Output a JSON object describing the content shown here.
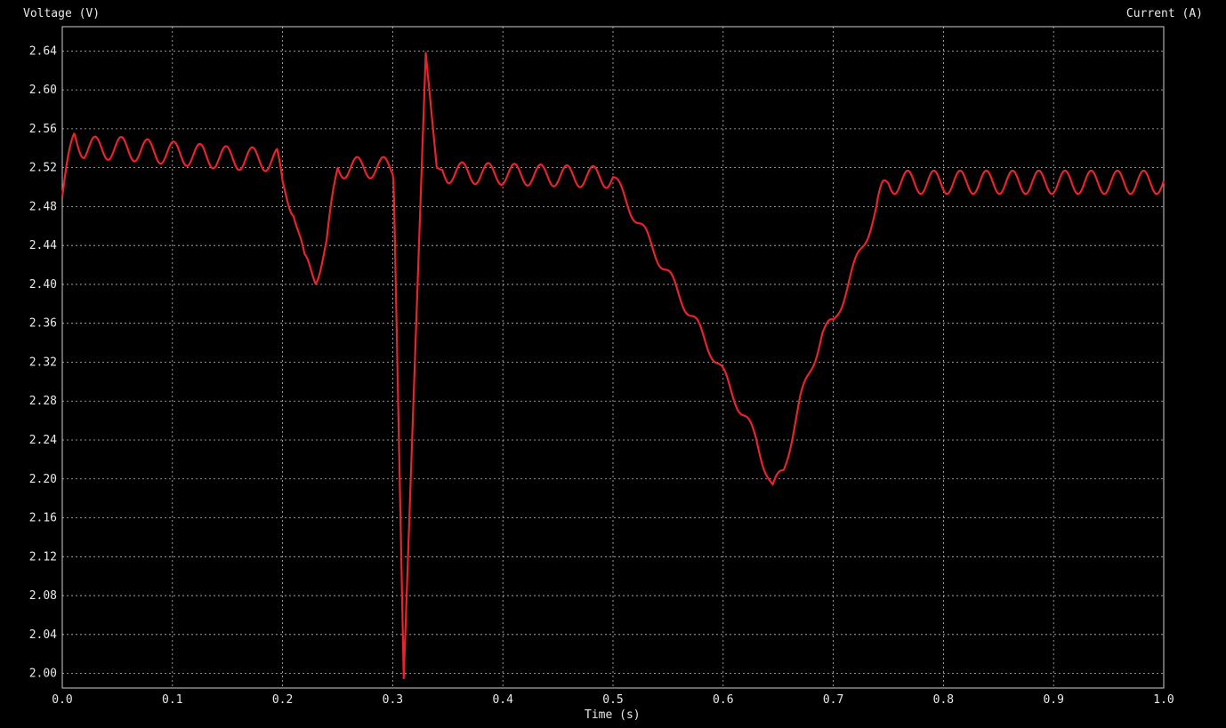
{
  "chart_data": {
    "type": "line",
    "xlabel": "Time (s)",
    "ylabel_left": "Voltage (V)",
    "ylabel_right": "Current (A)",
    "xlim": [
      0.0,
      1.0
    ],
    "ylim": [
      1.985,
      2.665
    ],
    "x_ticks": [
      "0.0",
      "0.1",
      "0.2",
      "0.3",
      "0.4",
      "0.5",
      "0.6",
      "0.7",
      "0.8",
      "0.9",
      "1.0"
    ],
    "y_ticks": [
      "2.00",
      "2.04",
      "2.08",
      "2.12",
      "2.16",
      "2.20",
      "2.24",
      "2.28",
      "2.32",
      "2.36",
      "2.40",
      "2.44",
      "2.48",
      "2.52",
      "2.56",
      "2.60",
      "2.64"
    ],
    "grid": true,
    "series": [
      {
        "color": "#e8232b",
        "x": [
          0.0,
          0.011,
          0.02,
          0.05,
          0.1,
          0.15,
          0.195,
          0.2,
          0.21,
          0.22,
          0.23,
          0.24,
          0.25,
          0.3,
          0.301,
          0.31,
          0.33,
          0.34,
          0.35,
          0.5,
          0.51,
          0.53,
          0.55,
          0.57,
          0.59,
          0.61,
          0.63,
          0.645,
          0.655,
          0.67,
          0.69,
          0.7,
          0.72,
          0.745,
          0.75,
          1.0
        ],
        "y": [
          2.49,
          2.553,
          2.54,
          2.54,
          2.535,
          2.53,
          2.528,
          2.5,
          2.48,
          2.42,
          2.41,
          2.44,
          2.52,
          2.52,
          2.5,
          1.995,
          2.638,
          2.52,
          2.515,
          2.51,
          2.49,
          2.45,
          2.41,
          2.37,
          2.33,
          2.285,
          2.24,
          2.19,
          2.21,
          2.28,
          2.35,
          2.36,
          2.42,
          2.495,
          2.505,
          2.505
        ]
      }
    ]
  }
}
